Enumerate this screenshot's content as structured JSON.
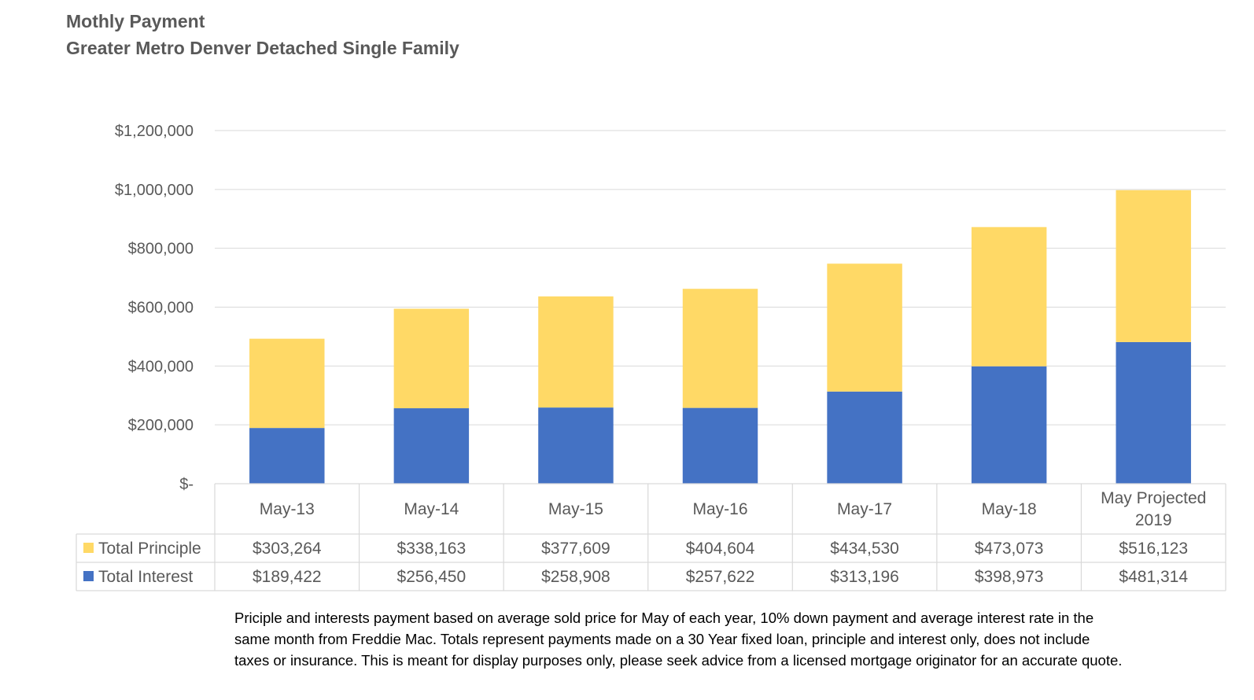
{
  "title": "Mothly Payment",
  "subtitle": "Greater Metro Denver Detached Single Family",
  "footnote": "Priciple and interests payment based on average sold price for May of each year, 10% down payment and average interest rate in the same month from Freddie Mac. Totals represent payments made on a 30 Year fixed loan, principle and interest only, does not include taxes or insurance. This is meant for display purposes only, please seek advice from a licensed mortgage originator for an accurate quote.",
  "chart_data": {
    "type": "bar",
    "stacked": true,
    "title": "Mothly Payment",
    "subtitle": "Greater Metro Denver Detached Single Family",
    "categories": [
      "May-13",
      "May-14",
      "May-15",
      "May-16",
      "May-17",
      "May-18",
      "May Projected 2019"
    ],
    "category_lines": [
      [
        "May-13"
      ],
      [
        "May-14"
      ],
      [
        "May-15"
      ],
      [
        "May-16"
      ],
      [
        "May-17"
      ],
      [
        "May-18"
      ],
      [
        "May Projected",
        "2019"
      ]
    ],
    "series": [
      {
        "name": "Total Interest",
        "color": "#4472C4",
        "values": [
          189422,
          256450,
          258908,
          257622,
          313196,
          398973,
          481314
        ],
        "labels": [
          "$189,422",
          "$256,450",
          "$258,908",
          "$257,622",
          "$313,196",
          "$398,973",
          "$481,314"
        ]
      },
      {
        "name": "Total Principle",
        "color": "#FFD966",
        "values": [
          303264,
          338163,
          377609,
          404604,
          434530,
          473073,
          516123
        ],
        "labels": [
          "$303,264",
          "$338,163",
          "$377,609",
          "$404,604",
          "$434,530",
          "$473,073",
          "$516,123"
        ]
      }
    ],
    "table_row_order": [
      "Total Principle",
      "Total Interest"
    ],
    "ylim": [
      0,
      1200000
    ],
    "yticks": [
      0,
      200000,
      400000,
      600000,
      800000,
      1000000,
      1200000
    ],
    "ytick_labels": [
      "$-",
      "$200,000",
      "$400,000",
      "$600,000",
      "$800,000",
      "$1,000,000",
      "$1,200,000"
    ],
    "grid": true,
    "legend": "data-table",
    "gridline_color": "#D9D9D9",
    "table_border_color": "#D9D9D9"
  }
}
